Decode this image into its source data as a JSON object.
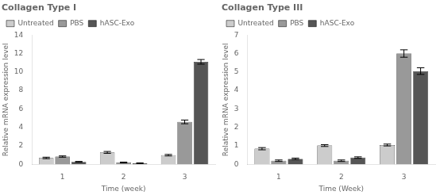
{
  "chart_data": [
    {
      "type": "bar",
      "title": "Collagen Type I",
      "x_label": "Time (week)",
      "y_label": "Relative mRNA expression level",
      "categories": [
        "1",
        "2",
        "3"
      ],
      "series": [
        {
          "name": "Untreated",
          "color": "#cccccc",
          "values": [
            0.7,
            1.3,
            1.0
          ],
          "errors": [
            0.08,
            0.1,
            0.08
          ]
        },
        {
          "name": "PBS",
          "color": "#999999",
          "values": [
            0.85,
            0.2,
            4.6
          ],
          "errors": [
            0.07,
            0.05,
            0.2
          ]
        },
        {
          "name": "hASC-Exo",
          "color": "#555555",
          "values": [
            0.28,
            0.13,
            11.1
          ],
          "errors": [
            0.04,
            0.04,
            0.25
          ]
        }
      ],
      "ylim": [
        0,
        14
      ],
      "yticks": [
        0,
        2,
        4,
        6,
        8,
        10,
        12,
        14
      ],
      "grid": false,
      "legend": "upper left"
    },
    {
      "type": "bar",
      "title": "Collagen Type III",
      "x_label": "Time (Week)",
      "y_label": "Relative mRNA expression level",
      "categories": [
        "1",
        "2",
        "3"
      ],
      "series": [
        {
          "name": "Untreated",
          "color": "#cccccc",
          "values": [
            0.85,
            1.02,
            1.05
          ],
          "errors": [
            0.06,
            0.05,
            0.05
          ]
        },
        {
          "name": "PBS",
          "color": "#999999",
          "values": [
            0.2,
            0.2,
            6.0
          ],
          "errors": [
            0.04,
            0.04,
            0.2
          ]
        },
        {
          "name": "hASC-Exo",
          "color": "#555555",
          "values": [
            0.3,
            0.37,
            5.05
          ],
          "errors": [
            0.04,
            0.04,
            0.18
          ]
        }
      ],
      "ylim": [
        0,
        7
      ],
      "yticks": [
        0,
        1,
        2,
        3,
        4,
        5,
        6,
        7
      ],
      "grid": false,
      "legend": "upper left"
    }
  ]
}
